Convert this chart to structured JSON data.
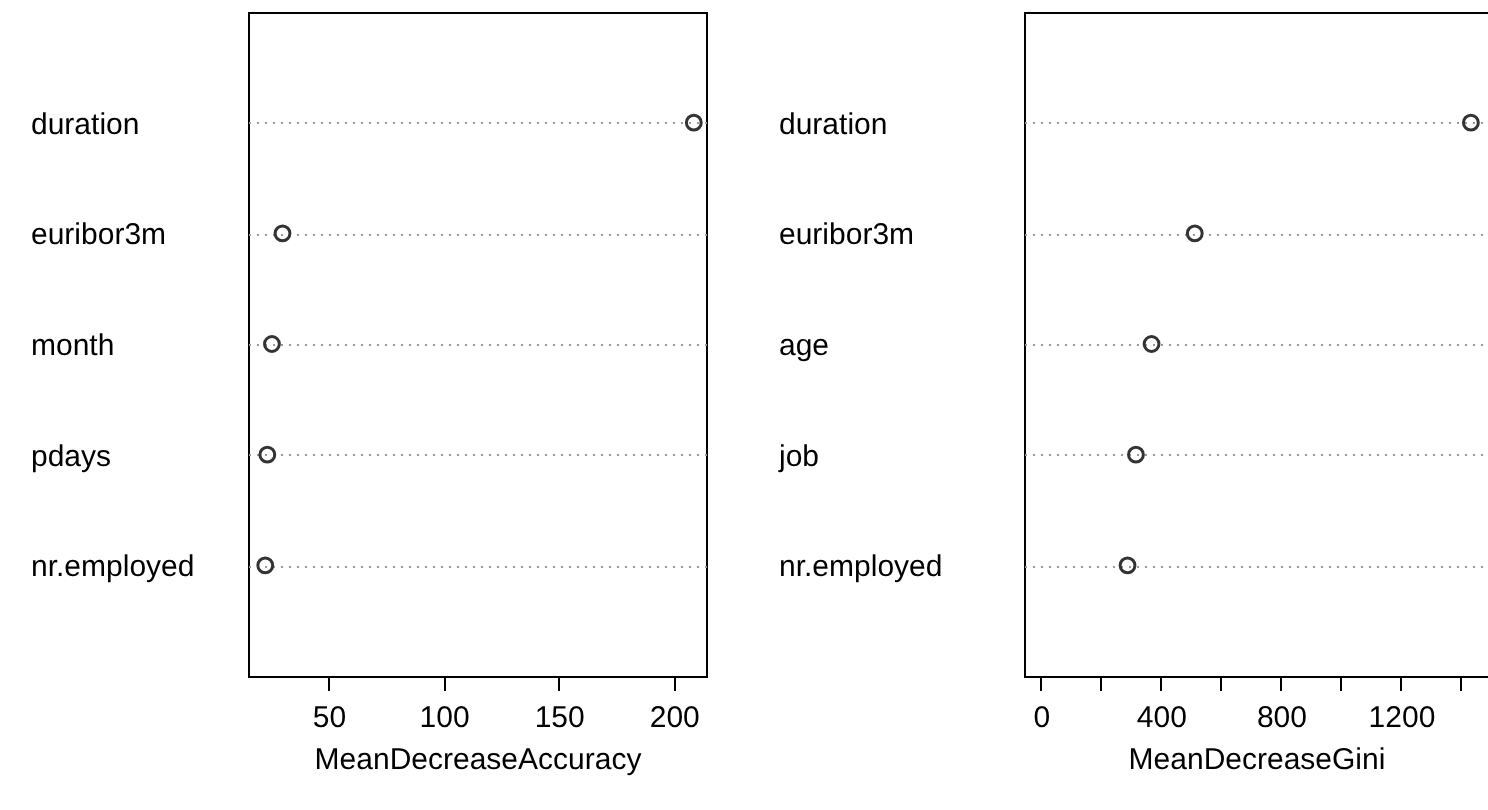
{
  "chart_data": [
    {
      "type": "scatter",
      "orientation": "horizontal",
      "categories": [
        "duration",
        "euribor3m",
        "month",
        "pdays",
        "nr.employed"
      ],
      "values": [
        208.7,
        30,
        25.4,
        23.4,
        22.5
      ],
      "color": "#333333",
      "marker": "circle",
      "grid": "y",
      "xlabel": "MeanDecreaseAccuracy",
      "xlim": [
        15,
        214
      ],
      "xticks": [
        50,
        100,
        150,
        200
      ]
    },
    {
      "type": "scatter",
      "orientation": "horizontal",
      "categories": [
        "duration",
        "euribor3m",
        "age",
        "job",
        "nr.employed"
      ],
      "values": [
        1433,
        513,
        369,
        317,
        289
      ],
      "color": "#333333",
      "marker": "circle",
      "grid": "y",
      "xlabel": "MeanDecreaseGini",
      "xlim": [
        -56,
        1490
      ],
      "xticks": [
        0,
        {
          "value": 200,
          "label": null
        },
        400,
        {
          "value": 600,
          "label": null
        },
        800,
        {
          "value": 1000,
          "label": null
        },
        1200,
        {
          "value": 1400,
          "label": null
        }
      ]
    }
  ]
}
